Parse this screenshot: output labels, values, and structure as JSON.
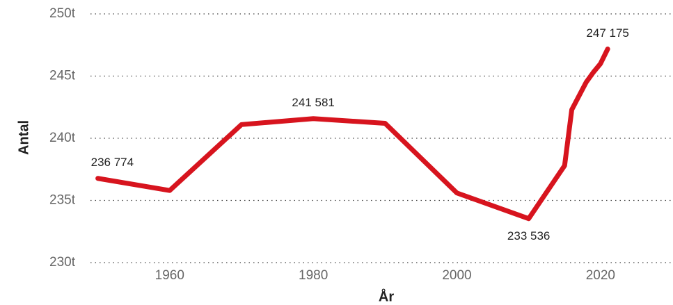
{
  "chart_data": {
    "type": "line",
    "x": [
      1950,
      1960,
      1970,
      1980,
      1990,
      2000,
      2010,
      2015,
      2016,
      2018,
      2019,
      2020,
      2021
    ],
    "series": [
      {
        "name": "Antal",
        "color": "#d7141e",
        "values": [
          236774,
          235800,
          241100,
          241581,
          241200,
          235600,
          233536,
          237800,
          242300,
          244500,
          245300,
          246000,
          247175
        ],
        "value_labels": [
          "236 774",
          null,
          null,
          "241 581",
          null,
          null,
          "233 536",
          null,
          null,
          null,
          null,
          null,
          "247 175"
        ]
      }
    ],
    "xlabel": "År",
    "ylabel": "Antal",
    "xlim": [
      1948,
      2030
    ],
    "xticks": [
      1960,
      1980,
      2000,
      2020
    ],
    "ylim": [
      230000,
      250000
    ],
    "yticks": [
      {
        "value": 230000,
        "label": "230t"
      },
      {
        "value": 235000,
        "label": "235t"
      },
      {
        "value": 240000,
        "label": "240t"
      },
      {
        "value": 245000,
        "label": "245t"
      },
      {
        "value": 250000,
        "label": "250t"
      }
    ],
    "grid": true
  }
}
